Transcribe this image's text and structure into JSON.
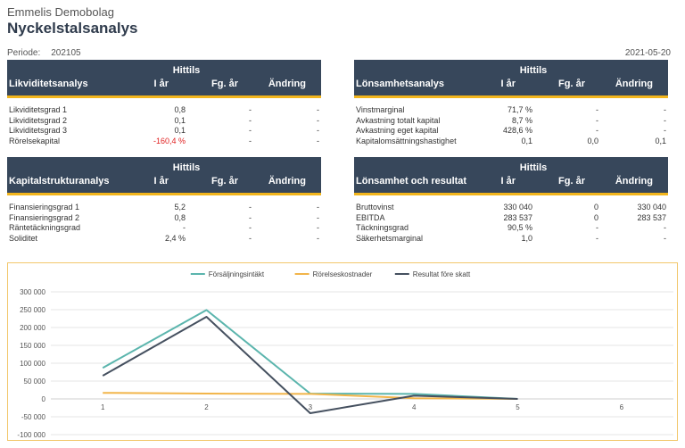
{
  "header": {
    "company": "Emmelis Demobolag",
    "title": "Nyckelstalsanalys",
    "period_label": "Periode:",
    "period_value": "202105",
    "date": "2021-05-20"
  },
  "columns": {
    "group": "Hittils",
    "current": "I år",
    "previous": "Fg. år",
    "change": "Ändring"
  },
  "panels": [
    {
      "title": "Likviditetsanalys",
      "rows": [
        {
          "label": "Likviditetsgrad 1",
          "cur": "0,8",
          "prev": "-",
          "chg": "-"
        },
        {
          "label": "Likviditetsgrad 2",
          "cur": "0,1",
          "prev": "-",
          "chg": "-"
        },
        {
          "label": "Likviditetsgrad 3",
          "cur": "0,1",
          "prev": "-",
          "chg": "-"
        },
        {
          "label": "Rörelsekapital",
          "cur": "-160,4 %",
          "prev": "-",
          "chg": "-"
        }
      ]
    },
    {
      "title": "Lönsamhetsanalys",
      "rows": [
        {
          "label": "Vinstmarginal",
          "cur": "71,7 %",
          "prev": "-",
          "chg": "-"
        },
        {
          "label": "Avkastning totalt kapital",
          "cur": "8,7 %",
          "prev": "-",
          "chg": "-"
        },
        {
          "label": "Avkastning eget kapital",
          "cur": "428,6 %",
          "prev": "-",
          "chg": "-"
        },
        {
          "label": "Kapitalomsättningshastighet",
          "cur": "0,1",
          "prev": "0,0",
          "chg": "0,1"
        }
      ]
    },
    {
      "title": "Kapitalstrukturanalys",
      "rows": [
        {
          "label": "Finansieringsgrad 1",
          "cur": "5,2",
          "prev": "-",
          "chg": "-"
        },
        {
          "label": "Finansieringsgrad 2",
          "cur": "0,8",
          "prev": "-",
          "chg": "-"
        },
        {
          "label": "Räntetäckningsgrad",
          "cur": "-",
          "prev": "-",
          "chg": "-"
        },
        {
          "label": "Soliditet",
          "cur": "2,4 %",
          "prev": "-",
          "chg": "-"
        }
      ]
    },
    {
      "title": "Lönsamhet och resultat",
      "rows": [
        {
          "label": "Bruttovinst",
          "cur": "330 040",
          "prev": "0",
          "chg": "330 040"
        },
        {
          "label": "EBITDA",
          "cur": "283 537",
          "prev": "0",
          "chg": "283 537"
        },
        {
          "label": "Täckningsgrad",
          "cur": "90,5 %",
          "prev": "-",
          "chg": "-"
        },
        {
          "label": "Säkerhetsmarginal",
          "cur": "1,0",
          "prev": "-",
          "chg": "-"
        }
      ]
    }
  ],
  "colors": {
    "negative": "#e02020",
    "header_bg": "#37475b",
    "accent": "#f2b51c"
  },
  "chart_data": {
    "type": "line",
    "categories": [
      "1",
      "2",
      "3",
      "4",
      "5",
      "6"
    ],
    "ylim": [
      -100000,
      300000
    ],
    "yticks": [
      -100000,
      -50000,
      0,
      50000,
      100000,
      150000,
      200000,
      250000,
      300000
    ],
    "ytick_labels": [
      "-100 000",
      "-50 000",
      "0",
      "50 000",
      "100 000",
      "150 000",
      "200 000",
      "250 000",
      "300 000"
    ],
    "grid": true,
    "legend": "top",
    "series": [
      {
        "name": "Försäljningsintäkt",
        "color": "#5bb5ad",
        "values": [
          87000,
          249000,
          15000,
          14000,
          0,
          null
        ]
      },
      {
        "name": "Rörelseskostnader",
        "color": "#f2b54a",
        "values": [
          17000,
          15000,
          14000,
          2000,
          0,
          null
        ]
      },
      {
        "name": "Resultat före skatt",
        "color": "#45505f",
        "values": [
          65000,
          230000,
          -40000,
          9000,
          0,
          null
        ]
      }
    ]
  }
}
